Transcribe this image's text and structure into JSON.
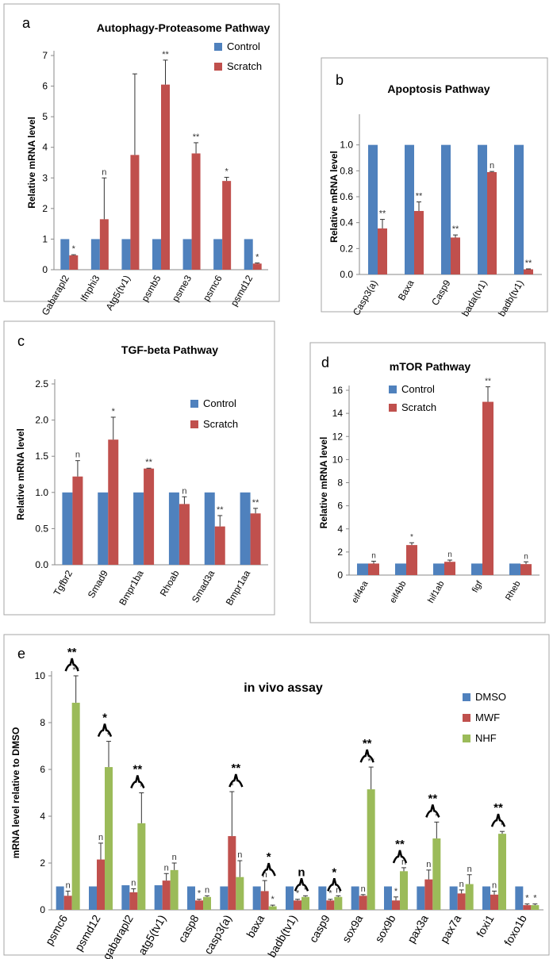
{
  "colors": {
    "control": "#4f81bd",
    "scratch": "#c0504d",
    "nhf": "#9bbb59",
    "frame": "#a6a6a6"
  },
  "chart_data": [
    {
      "panel": "a",
      "type": "bar",
      "title": "Autophagy-Proteasome Pathway",
      "ylabel": "Relative mRNA level",
      "ylim": [
        0,
        7
      ],
      "yticks": [
        0,
        1,
        2,
        3,
        4,
        5,
        6,
        7
      ],
      "tick_decimals": 0,
      "categories": [
        "Gabarapl2",
        "Ifnphi3",
        "Atg5(tv1)",
        "psmb5",
        "psme3",
        "psmc6",
        "psmd12"
      ],
      "series": [
        {
          "name": "Control",
          "color": "#4f81bd",
          "values": [
            1,
            1,
            1,
            1,
            1,
            1,
            1
          ],
          "errors": [
            0,
            0,
            0,
            0,
            0,
            0,
            0
          ],
          "labels": []
        },
        {
          "name": "Scratch",
          "color": "#c0504d",
          "values": [
            0.47,
            1.65,
            3.75,
            6.05,
            3.8,
            2.9,
            0.2
          ],
          "errors": [
            0.02,
            1.35,
            2.65,
            0.8,
            0.35,
            0.12,
            0.02
          ],
          "labels": [
            "*",
            "n",
            "",
            "**",
            "**",
            "*",
            "*"
          ]
        }
      ]
    },
    {
      "panel": "b",
      "type": "bar",
      "title": "Apoptosis Pathway",
      "ylabel": "Relative mRNA level",
      "ylim": [
        0,
        1.2
      ],
      "yticks": [
        0,
        0.2,
        0.4,
        0.6,
        0.8,
        1
      ],
      "tick_decimals": 1,
      "categories": [
        "Casp3(a)",
        "Baxa",
        "Casp9",
        "bada(tv1)",
        "badb(tv1)"
      ],
      "series": [
        {
          "color": "#4f81bd",
          "values": [
            1,
            1,
            1,
            1,
            1
          ],
          "errors": [
            0,
            0,
            0,
            0,
            0
          ],
          "labels": []
        },
        {
          "color": "#c0504d",
          "values": [
            0.355,
            0.49,
            0.285,
            0.79,
            0.04
          ],
          "errors": [
            0.07,
            0.07,
            0.02,
            0.005,
            0.003
          ],
          "labels": [
            "**",
            "**",
            "**",
            "n",
            "**"
          ]
        }
      ]
    },
    {
      "panel": "c",
      "type": "bar",
      "title": "TGF-beta Pathway",
      "ylabel": "Relative mRNA level",
      "ylim": [
        0,
        2.5
      ],
      "yticks": [
        0,
        0.5,
        1,
        1.5,
        2,
        2.5
      ],
      "tick_decimals": 1,
      "categories": [
        "Tgfbr2",
        "Smad9",
        "Bmpr1ba",
        "Rhoab",
        "Smad3a",
        "Bmpr1aa"
      ],
      "series": [
        {
          "name": "Control",
          "color": "#4f81bd",
          "values": [
            1,
            1,
            1,
            1,
            1,
            1
          ],
          "errors": [
            0,
            0,
            0,
            0,
            0,
            0
          ],
          "labels": []
        },
        {
          "name": "Scratch",
          "color": "#c0504d",
          "values": [
            1.22,
            1.73,
            1.33,
            0.84,
            0.53,
            0.71
          ],
          "errors": [
            0.22,
            0.31,
            0.005,
            0.1,
            0.15,
            0.07
          ],
          "labels": [
            "n",
            "*",
            "**",
            "n",
            "**",
            "**"
          ]
        }
      ]
    },
    {
      "panel": "d",
      "type": "bar",
      "title": "mTOR Pathway",
      "ylabel": "Relative mRNA level",
      "ylim": [
        0,
        16
      ],
      "yticks": [
        0,
        2,
        4,
        6,
        8,
        10,
        12,
        14,
        16
      ],
      "tick_decimals": 0,
      "categories": [
        "eif4ea",
        "eif4bb",
        "hif1ab",
        "figf",
        "Rheb"
      ],
      "series": [
        {
          "name": "Control",
          "color": "#4f81bd",
          "values": [
            1,
            1,
            1,
            1,
            1
          ],
          "errors": [
            0,
            0,
            0,
            0,
            0
          ],
          "labels": []
        },
        {
          "name": "Scratch",
          "color": "#c0504d",
          "values": [
            1.0,
            2.6,
            1.15,
            15.0,
            0.95
          ],
          "errors": [
            0.2,
            0.2,
            0.15,
            1.3,
            0.2
          ],
          "labels": [
            "n",
            "*",
            "n",
            "**",
            "n"
          ]
        }
      ]
    },
    {
      "panel": "e",
      "type": "bar",
      "title": "in vivo assay",
      "ylabel": "mRNA level relative to DMSO",
      "ylim": [
        0,
        10
      ],
      "yticks": [
        0,
        2,
        4,
        6,
        8,
        10
      ],
      "tick_decimals": 0,
      "categories": [
        "psmc6",
        "psmd12",
        "gabarapl2",
        "atg5(tv1)",
        "casp8",
        "casp3(a)",
        "baxa",
        "badb(tv1)",
        "casp9",
        "sox9a",
        "sox9b",
        "pax3a",
        "pax7a",
        "foxi1",
        "foxo1b"
      ],
      "series": [
        {
          "name": "DMSO",
          "color": "#4f81bd",
          "values": [
            1,
            1,
            1.05,
            1.05,
            1,
            1,
            1,
            1,
            1,
            1,
            1,
            1,
            1,
            1,
            1
          ],
          "errors": [
            0,
            0,
            0,
            0,
            0,
            0,
            0,
            0,
            0,
            0,
            0,
            0,
            0,
            0,
            0
          ],
          "labels": []
        },
        {
          "name": "MWF",
          "color": "#c0504d",
          "values": [
            0.6,
            2.15,
            0.75,
            1.25,
            0.4,
            3.15,
            0.8,
            0.4,
            0.4,
            0.6,
            0.4,
            1.3,
            0.7,
            0.65,
            0.2
          ],
          "errors": [
            0.2,
            0.7,
            0.15,
            0.3,
            0.05,
            1.9,
            0.45,
            0.05,
            0.05,
            0.05,
            0.15,
            0.4,
            0.15,
            0.15,
            0.05
          ],
          "labels": [
            "n",
            "n",
            "n",
            "n",
            "*",
            "*",
            "n",
            "*",
            "*",
            "n",
            "*",
            "n",
            "n",
            "n",
            "*"
          ]
        },
        {
          "name": "NHF",
          "color": "#9bbb59",
          "values": [
            8.85,
            6.1,
            3.7,
            1.7,
            0.55,
            1.4,
            0.15,
            0.55,
            0.55,
            5.15,
            1.65,
            3.05,
            1.1,
            3.25,
            0.2
          ],
          "errors": [
            1.15,
            1.1,
            1.3,
            0.3,
            0.05,
            0.7,
            0.05,
            0.05,
            0.05,
            0.95,
            0.15,
            0.7,
            0.4,
            0.1,
            0.05
          ],
          "labels": [
            "**",
            "*",
            "*",
            "n",
            "n",
            "n",
            "*",
            "*",
            "n",
            "**",
            "n",
            "*",
            "n",
            "*",
            "*"
          ]
        }
      ],
      "brackets": [
        "**",
        "*",
        "**",
        "",
        "",
        "**",
        "*",
        "n",
        "*",
        "**",
        "**",
        "**",
        "",
        "**",
        ""
      ]
    }
  ]
}
